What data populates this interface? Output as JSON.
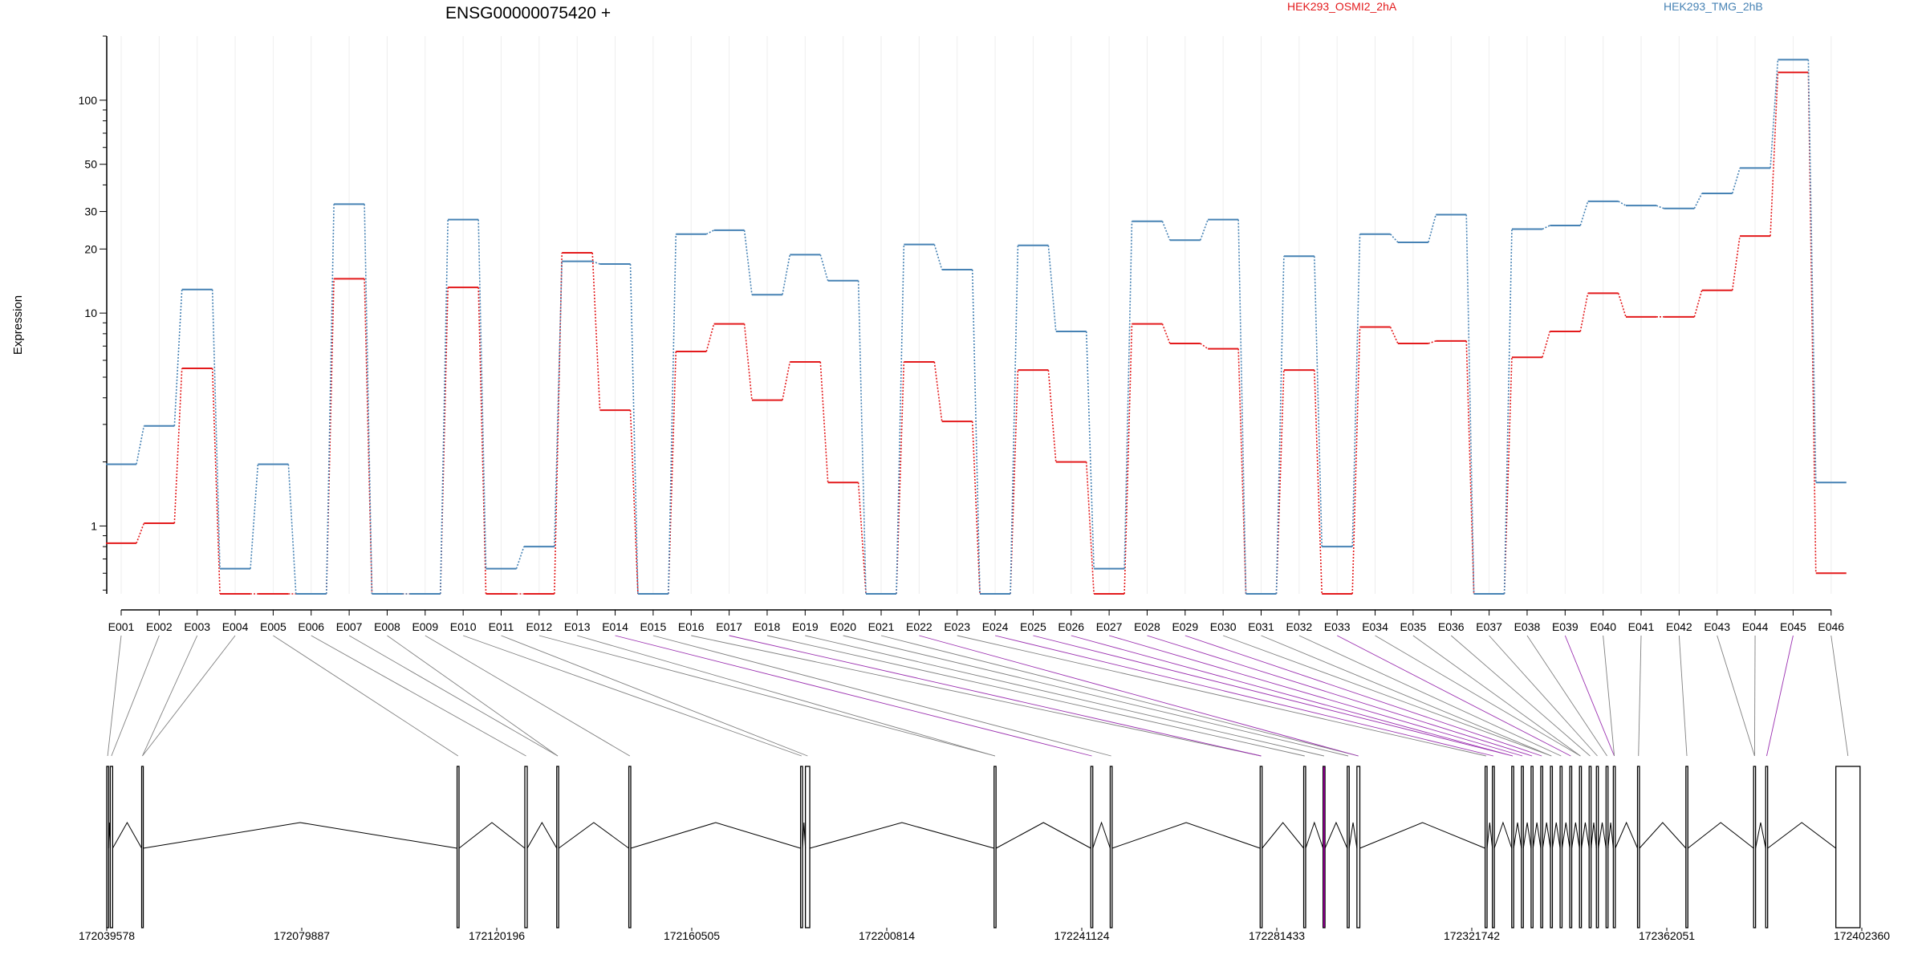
{
  "chart_data": {
    "type": "line",
    "title": "ENSG00000075420 +",
    "ylabel": "Expression",
    "xlabel": "",
    "yscale": "log",
    "ylim": [
      0.48,
      200
    ],
    "yticks": [
      {
        "value": 1,
        "label": "1"
      },
      {
        "value": 10,
        "label": "10"
      },
      {
        "value": 20,
        "label": "20"
      },
      {
        "value": 30,
        "label": "30"
      },
      {
        "value": 50,
        "label": "50"
      },
      {
        "value": 100,
        "label": "100"
      }
    ],
    "categories": [
      "E001",
      "E002",
      "E003",
      "E004",
      "E005",
      "E006",
      "E007",
      "E008",
      "E009",
      "E010",
      "E011",
      "E012",
      "E013",
      "E014",
      "E015",
      "E016",
      "E017",
      "E018",
      "E019",
      "E020",
      "E021",
      "E022",
      "E023",
      "E024",
      "E025",
      "E026",
      "E027",
      "E028",
      "E029",
      "E030",
      "E031",
      "E032",
      "E033",
      "E034",
      "E035",
      "E036",
      "E037",
      "E038",
      "E039",
      "E040",
      "E041",
      "E042",
      "E043",
      "E044",
      "E045",
      "E046"
    ],
    "series": [
      {
        "name": "HEK293_OSMI2_2hA",
        "color": "#e31a1c",
        "values": [
          0.83,
          1.03,
          5.5,
          0.48,
          0.48,
          0.48,
          14.5,
          0.48,
          0.48,
          13.2,
          0.48,
          0.48,
          19.2,
          3.5,
          0.48,
          6.6,
          8.9,
          3.9,
          5.9,
          1.6,
          0.48,
          5.9,
          3.1,
          0.48,
          5.4,
          2.0,
          0.48,
          8.9,
          7.2,
          6.8,
          0.48,
          5.4,
          0.48,
          8.6,
          7.2,
          7.4,
          0.48,
          6.2,
          8.2,
          12.4,
          9.6,
          9.6,
          12.8,
          23.0,
          135,
          0.6
        ]
      },
      {
        "name": "HEK293_TMG_2hB",
        "color": "#4682b4",
        "values": [
          1.95,
          2.95,
          12.9,
          0.63,
          1.95,
          0.48,
          32.5,
          0.48,
          0.48,
          27.5,
          0.63,
          0.8,
          17.5,
          17.0,
          0.48,
          23.5,
          24.5,
          12.2,
          18.8,
          14.2,
          0.48,
          21.0,
          16.0,
          0.48,
          20.8,
          8.2,
          0.63,
          27.0,
          22.0,
          27.5,
          0.48,
          18.5,
          0.8,
          23.5,
          21.5,
          29.0,
          0.48,
          24.8,
          25.8,
          33.5,
          32.0,
          31.0,
          36.5,
          48.0,
          155,
          1.6
        ]
      }
    ]
  },
  "gene_model": {
    "coord_ticks": [
      "172039578",
      "172079887",
      "172120196",
      "172160505",
      "172200814",
      "172241124",
      "172281433",
      "172321742",
      "172362051",
      "172402360"
    ],
    "coord_range": [
      172039578,
      172402360
    ],
    "highlight_color": "#ff00ff",
    "exon_color": "#000000",
    "exons": [
      [
        172039578,
        172039950
      ],
      [
        172040300,
        172040800
      ],
      [
        172046800,
        172047100
      ],
      [
        172112000,
        172112400
      ],
      [
        172126000,
        172126500
      ],
      [
        172132600,
        172133000
      ],
      [
        172147500,
        172147900
      ],
      [
        172183000,
        172183400
      ],
      [
        172184000,
        172184900
      ],
      [
        172223000,
        172223400
      ],
      [
        172243000,
        172243400
      ],
      [
        172247000,
        172247400
      ],
      [
        172278000,
        172278400
      ],
      [
        172287000,
        172287400
      ],
      [
        172291000,
        172291400
      ],
      [
        172296000,
        172296400
      ],
      [
        172298000,
        172298600
      ],
      [
        172324500,
        172324900
      ],
      [
        172326000,
        172326400
      ],
      [
        172330000,
        172330400
      ],
      [
        172332000,
        172332400
      ],
      [
        172334000,
        172334400
      ],
      [
        172336000,
        172336400
      ],
      [
        172338000,
        172338400
      ],
      [
        172340000,
        172340400
      ],
      [
        172342000,
        172342400
      ],
      [
        172344000,
        172344400
      ],
      [
        172346000,
        172346400
      ],
      [
        172347500,
        172347900
      ],
      [
        172349500,
        172349900
      ],
      [
        172351000,
        172351400
      ],
      [
        172356000,
        172356400
      ],
      [
        172366000,
        172366400
      ],
      [
        172380000,
        172380400
      ],
      [
        172382500,
        172382900
      ],
      [
        172397000,
        172402000
      ]
    ],
    "highlighted_exons": [
      14,
      44
    ]
  }
}
